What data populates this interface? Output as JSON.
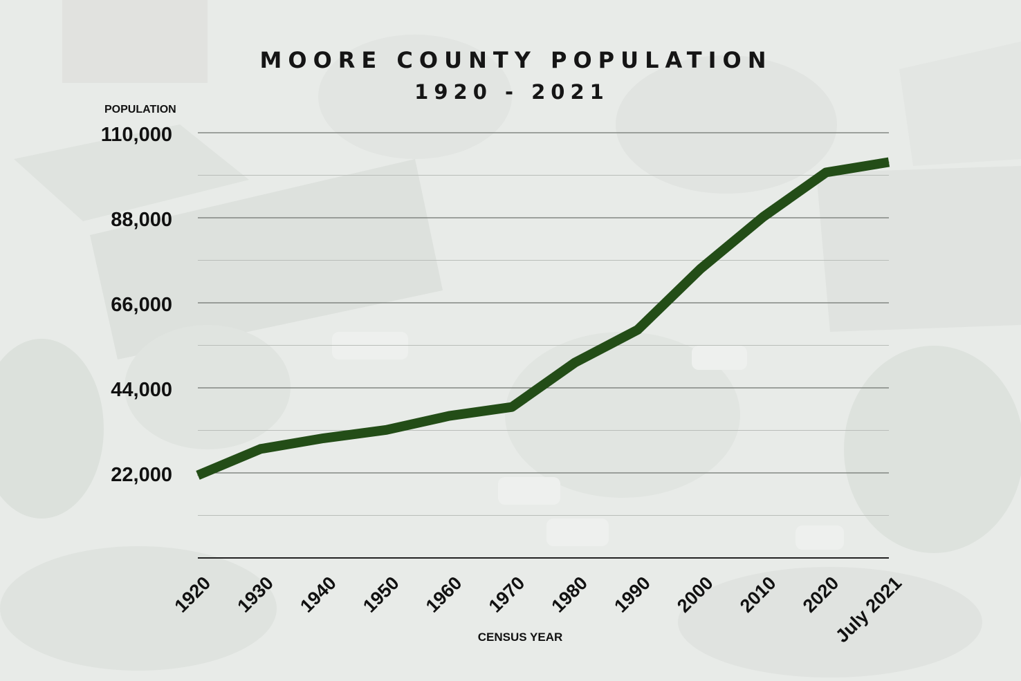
{
  "chart_data": {
    "type": "line",
    "title": "MOORE COUNTY POPULATION",
    "subtitle": "1920 - 2021",
    "ylabel": "POPULATION",
    "xlabel": "CENSUS YEAR",
    "categories": [
      "1920",
      "1930",
      "1940",
      "1950",
      "1960",
      "1970",
      "1980",
      "1990",
      "2000",
      "2010",
      "2020",
      "July 2021"
    ],
    "values": [
      21388,
      28215,
      30969,
      33129,
      36733,
      39048,
      50505,
      59013,
      74769,
      88247,
      99727,
      102392
    ],
    "yticks": [
      "22,000",
      "44,000",
      "66,000",
      "88,000",
      "110,000"
    ],
    "ytick_values": [
      22000,
      44000,
      66000,
      88000,
      110000
    ],
    "ylim": [
      0,
      110000
    ],
    "grid": true,
    "line_color": "#234d17"
  }
}
